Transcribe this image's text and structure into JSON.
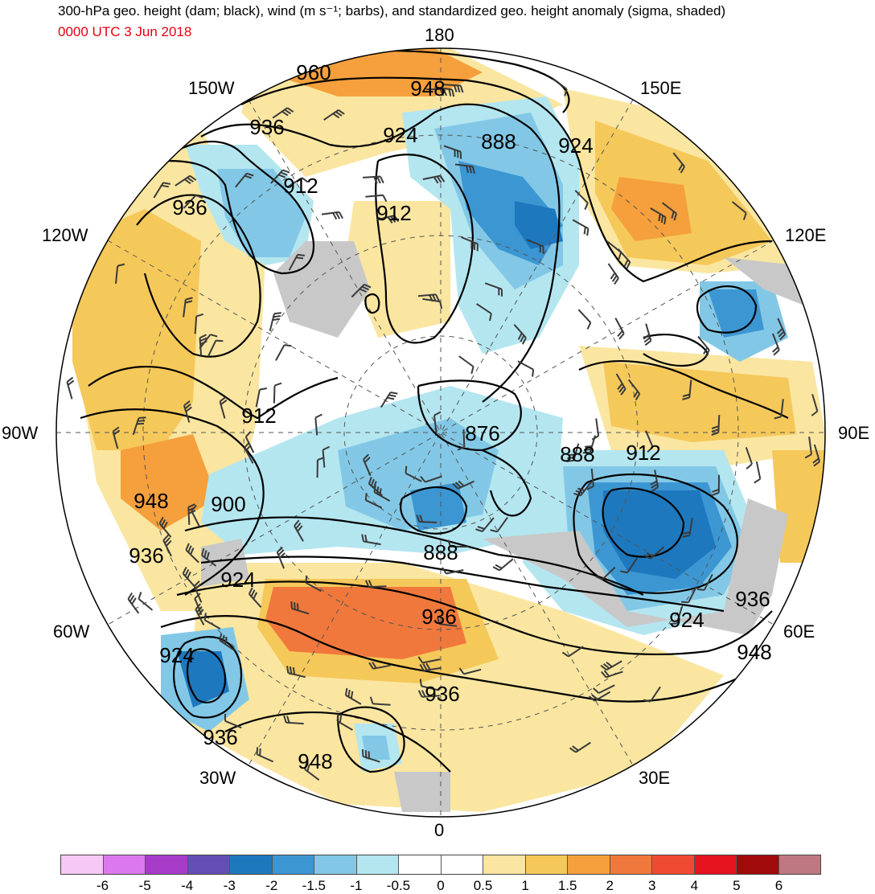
{
  "header": {
    "title": "300-hPa geo. height (dam; black), wind (m s⁻¹; barbs), and standardized geo. height anomaly (sigma, shaded)",
    "valid_time": "0000 UTC 3 Jun 2018",
    "valid_time_color": "#e8000b"
  },
  "map": {
    "projection": "north polar stereographic",
    "longitude_labels": {
      "lon_180": "180",
      "lon_150w": "150W",
      "lon_150e": "150E",
      "lon_120w": "120W",
      "lon_120e": "120E",
      "lon_90w": "90W",
      "lon_90e": "90E",
      "lon_60w": "60W",
      "lon_60e": "60E",
      "lon_30w": "30W",
      "lon_30e": "30E",
      "lon_0": "0"
    },
    "contour_labels": [
      "960",
      "948",
      "936",
      "924",
      "888",
      "924",
      "912",
      "936",
      "912",
      "912",
      "876",
      "888",
      "912",
      "948",
      "900",
      "888",
      "924",
      "936",
      "936",
      "924",
      "936",
      "948",
      "924",
      "936",
      "948",
      "936"
    ],
    "colors": {
      "land_gray": "#c8c8c8",
      "contour": "#000000",
      "barb": "#3a3a3a"
    }
  },
  "colorbar": {
    "colors": [
      "#f6c8f6",
      "#dc78ee",
      "#a63cc8",
      "#6450b4",
      "#1e78be",
      "#3c96d2",
      "#82c8e6",
      "#b4e6f0",
      "#ffffff",
      "#ffffff",
      "#fae6a0",
      "#f5c85a",
      "#f5a03c",
      "#f0783c",
      "#f04b32",
      "#e6141e",
      "#a00a0a",
      "#be7882"
    ],
    "tick_labels": [
      "-6",
      "-5",
      "-4",
      "-3",
      "-2",
      "-1.5",
      "-1",
      "-0.5",
      "0",
      "0.5",
      "1",
      "1.5",
      "2",
      "3",
      "4",
      "5",
      "6"
    ]
  }
}
